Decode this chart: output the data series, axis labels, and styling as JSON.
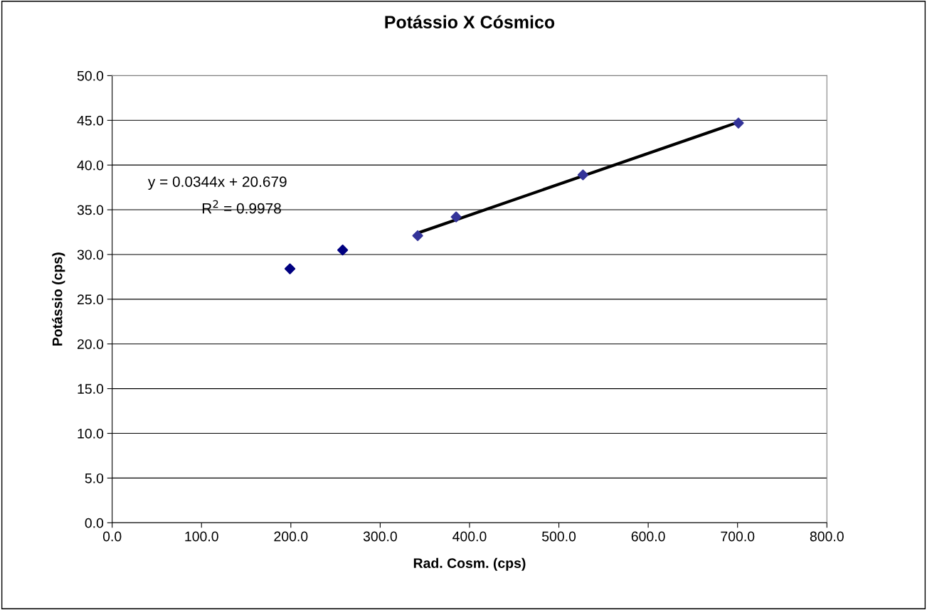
{
  "chart_data": {
    "type": "scatter",
    "title": "Potássio X Cósmico",
    "xlabel": "Rad. Cosm. (cps)",
    "ylabel": "Potássio (cps)",
    "series": [
      {
        "color": "#000080",
        "x": [
          199,
          258
        ],
        "values": [
          28.4,
          30.5
        ]
      },
      {
        "color": "#333399",
        "x": [
          342,
          385,
          527,
          701
        ],
        "values": [
          32.1,
          34.2,
          38.9,
          44.7
        ]
      },
      {
        "type": "line",
        "color": "#000000",
        "marker": "none",
        "x": [
          342,
          701
        ],
        "values": [
          32.4,
          44.8
        ]
      }
    ],
    "annotations": [
      "y = 0.0344x + 20.679",
      "R$^{2}$ = 0.9978"
    ],
    "xlim": [
      0,
      800
    ],
    "xticks": [
      {
        "value": 0,
        "label": "0.0"
      },
      {
        "value": 100,
        "label": "100.0"
      },
      {
        "value": 200,
        "label": "200.0"
      },
      {
        "value": 300,
        "label": "300.0"
      },
      {
        "value": 400,
        "label": "400.0"
      },
      {
        "value": 500,
        "label": "500.0"
      },
      {
        "value": 600,
        "label": "600.0"
      },
      {
        "value": 700,
        "label": "700.0"
      },
      {
        "value": 800,
        "label": "800.0"
      }
    ],
    "ylim": [
      0,
      50
    ],
    "yticks": [
      {
        "value": 0,
        "label": "0.0"
      },
      {
        "value": 5,
        "label": "5.0"
      },
      {
        "value": 10,
        "label": "10.0"
      },
      {
        "value": 15,
        "label": "15.0"
      },
      {
        "value": 20,
        "label": "20.0"
      },
      {
        "value": 25,
        "label": "25.0"
      },
      {
        "value": 30,
        "label": "30.0"
      },
      {
        "value": 35,
        "label": "35.0"
      },
      {
        "value": 40,
        "label": "40.0"
      },
      {
        "value": 45,
        "label": "45.0"
      },
      {
        "value": 50,
        "label": "50.0"
      }
    ],
    "grid": "y",
    "marker": "diamond",
    "legend": false
  }
}
